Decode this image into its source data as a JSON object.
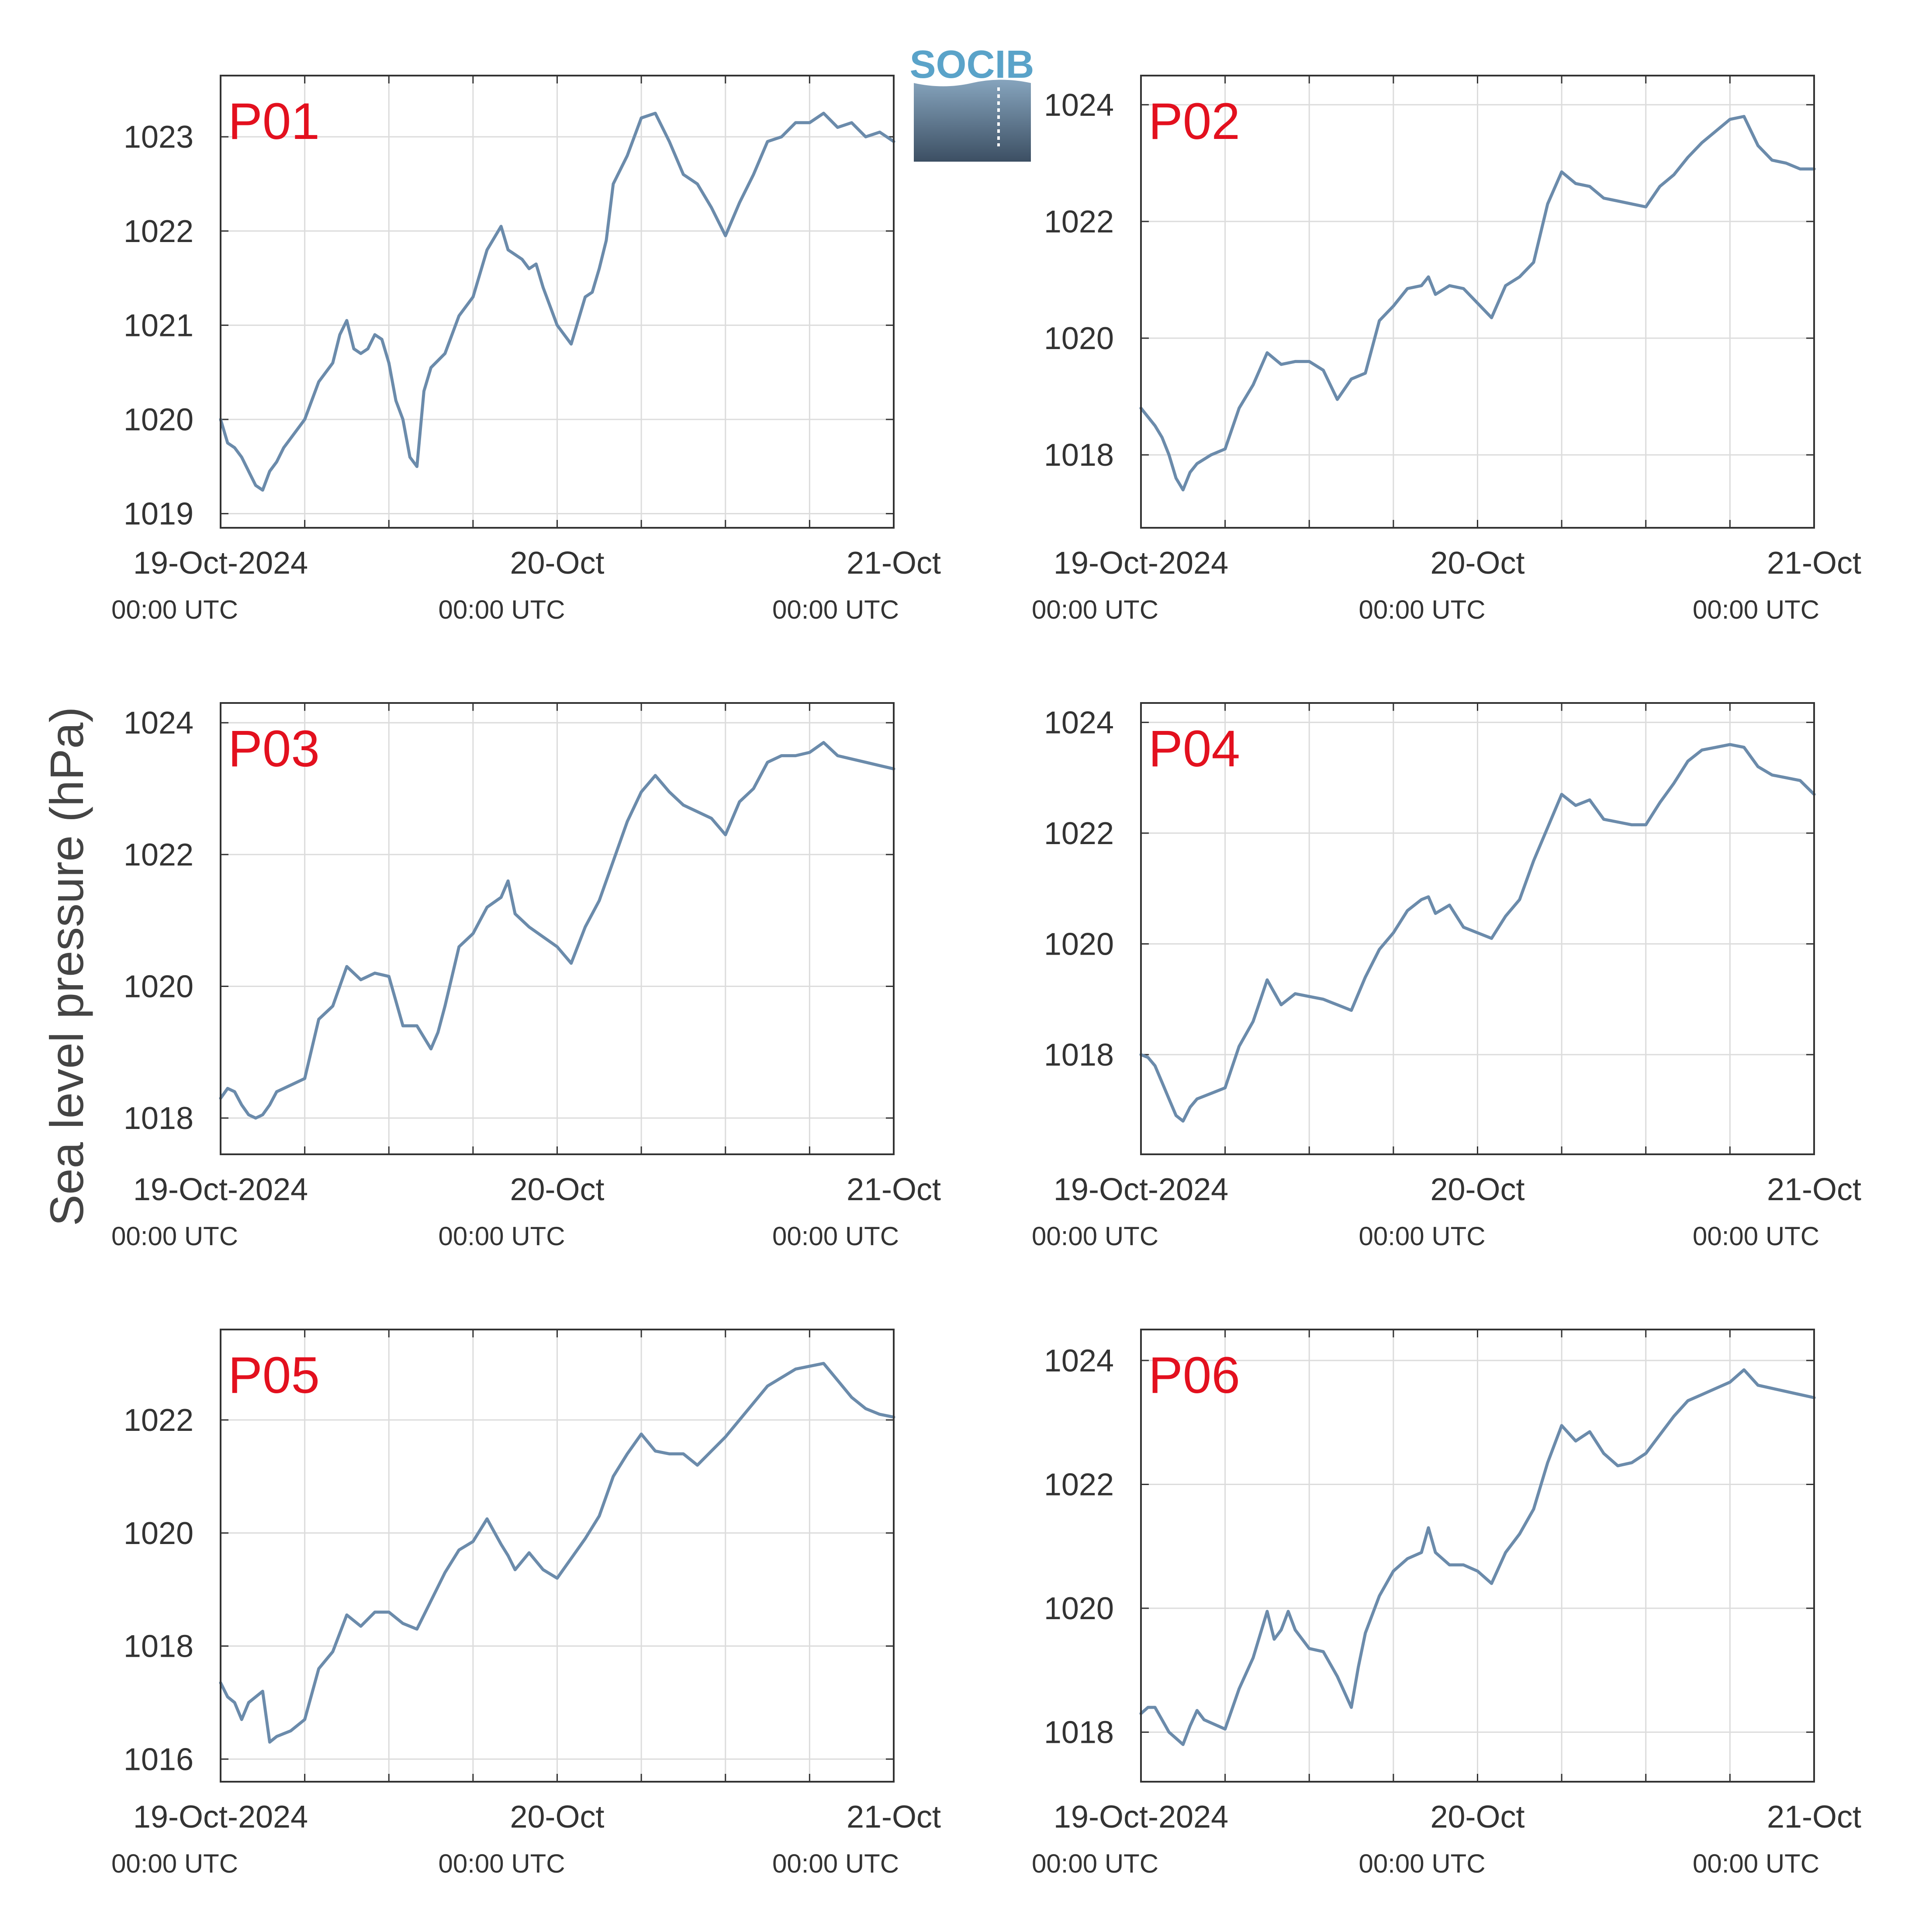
{
  "figure": {
    "ylabel": "Sea level pressure (hPa)",
    "logo": {
      "text": "SOCIB"
    },
    "colors": {
      "line": "#6b8bab",
      "label": "#e3101e",
      "grid": "#dcdcdc",
      "axis": "#333333",
      "logo_text": "#5aa3c9",
      "logo_top": "#86a4bd",
      "logo_bottom": "#3c4f63"
    },
    "x_ticks": [
      {
        "date": "19-Oct-2024",
        "time": "00:00 UTC",
        "x": 0
      },
      {
        "date": "20-Oct",
        "time": "00:00 UTC",
        "x": 24
      },
      {
        "date": "21-Oct",
        "time": "00:00 UTC",
        "x": 48
      }
    ]
  },
  "chart_data": [
    {
      "type": "line",
      "label": "P01",
      "xlim": [
        0,
        48
      ],
      "ylim": [
        1018.85,
        1023.65
      ],
      "yticks": [
        1019,
        1020,
        1021,
        1022,
        1023
      ],
      "ylabel": "Sea level pressure (hPa)",
      "grid": true,
      "x": [
        0,
        0.5,
        1,
        1.5,
        2,
        2.5,
        3,
        3.5,
        4,
        4.5,
        5,
        6,
        7,
        8,
        8.5,
        9,
        9.5,
        10,
        10.5,
        11,
        11.5,
        12,
        12.5,
        13,
        13.5,
        14,
        14.5,
        15,
        16,
        17,
        18,
        19,
        20,
        20.5,
        21,
        21.5,
        22,
        22.5,
        23,
        24,
        25,
        26,
        26.5,
        27,
        27.5,
        28,
        29,
        30,
        31,
        32,
        33,
        33.5,
        34,
        35,
        36,
        37,
        38,
        39,
        40,
        41,
        42,
        43,
        44,
        45,
        46,
        47,
        48
      ],
      "values": [
        1020.0,
        1019.75,
        1019.7,
        1019.6,
        1019.45,
        1019.3,
        1019.25,
        1019.45,
        1019.55,
        1019.7,
        1019.8,
        1020.0,
        1020.4,
        1020.6,
        1020.9,
        1021.05,
        1020.75,
        1020.7,
        1020.75,
        1020.9,
        1020.85,
        1020.6,
        1020.2,
        1020.0,
        1019.6,
        1019.5,
        1020.3,
        1020.55,
        1020.7,
        1021.1,
        1021.3,
        1021.8,
        1022.05,
        1021.8,
        1021.75,
        1021.7,
        1021.6,
        1021.65,
        1021.4,
        1021.0,
        1020.8,
        1021.3,
        1021.35,
        1021.6,
        1021.9,
        1022.5,
        1022.8,
        1023.2,
        1023.25,
        1022.95,
        1022.6,
        1022.55,
        1022.5,
        1022.25,
        1021.95,
        1022.3,
        1022.6,
        1022.95,
        1023.0,
        1023.15,
        1023.15,
        1023.25,
        1023.1,
        1023.15,
        1023.0,
        1023.05,
        1022.95
      ]
    },
    {
      "type": "line",
      "label": "P02",
      "xlim": [
        0,
        48
      ],
      "ylim": [
        1016.75,
        1024.5
      ],
      "yticks": [
        1018,
        1020,
        1022,
        1024
      ],
      "ylabel": "Sea level pressure (hPa)",
      "grid": true,
      "x": [
        0,
        0.5,
        1,
        1.5,
        2,
        2.5,
        3,
        3.5,
        4,
        5,
        6,
        7,
        8,
        9,
        10,
        11,
        12,
        13,
        14,
        15,
        16,
        17,
        18,
        19,
        20,
        20.5,
        21,
        22,
        23,
        24,
        25,
        26,
        27,
        28,
        29,
        30,
        31,
        32,
        33,
        34,
        35,
        36,
        37,
        38,
        39,
        40,
        41,
        42,
        43,
        44,
        45,
        46,
        47,
        48
      ],
      "values": [
        1018.8,
        1018.65,
        1018.5,
        1018.3,
        1018.0,
        1017.6,
        1017.4,
        1017.7,
        1017.85,
        1018.0,
        1018.1,
        1018.8,
        1019.2,
        1019.75,
        1019.55,
        1019.6,
        1019.6,
        1019.45,
        1018.95,
        1019.3,
        1019.4,
        1020.3,
        1020.55,
        1020.85,
        1020.9,
        1021.05,
        1020.75,
        1020.9,
        1020.85,
        1020.6,
        1020.35,
        1020.9,
        1021.05,
        1021.3,
        1022.3,
        1022.85,
        1022.65,
        1022.6,
        1022.4,
        1022.35,
        1022.3,
        1022.25,
        1022.6,
        1022.8,
        1023.1,
        1023.35,
        1023.55,
        1023.75,
        1023.8,
        1023.3,
        1023.05,
        1023.0,
        1022.9,
        1022.9
      ]
    },
    {
      "type": "line",
      "label": "P03",
      "xlim": [
        0,
        48
      ],
      "ylim": [
        1017.45,
        1024.3
      ],
      "yticks": [
        1018,
        1020,
        1022,
        1024
      ],
      "ylabel": "Sea level pressure (hPa)",
      "grid": true,
      "x": [
        0,
        0.5,
        1,
        1.5,
        2,
        2.5,
        3,
        3.5,
        4,
        5,
        6,
        7,
        8,
        9,
        10,
        11,
        12,
        13,
        14,
        15,
        15.5,
        16,
        17,
        18,
        19,
        20,
        20.5,
        21,
        22,
        23,
        24,
        25,
        26,
        27,
        28,
        29,
        30,
        31,
        32,
        33,
        34,
        35,
        36,
        37,
        38,
        39,
        40,
        41,
        42,
        43,
        44,
        45,
        46,
        47,
        48
      ],
      "values": [
        1018.3,
        1018.45,
        1018.4,
        1018.2,
        1018.05,
        1018.0,
        1018.05,
        1018.2,
        1018.4,
        1018.5,
        1018.6,
        1019.5,
        1019.7,
        1020.3,
        1020.1,
        1020.2,
        1020.15,
        1019.4,
        1019.4,
        1019.05,
        1019.3,
        1019.7,
        1020.6,
        1020.8,
        1021.2,
        1021.35,
        1021.6,
        1021.1,
        1020.9,
        1020.75,
        1020.6,
        1020.35,
        1020.9,
        1021.3,
        1021.9,
        1022.5,
        1022.95,
        1023.2,
        1022.95,
        1022.75,
        1022.65,
        1022.55,
        1022.3,
        1022.8,
        1023.0,
        1023.4,
        1023.5,
        1023.5,
        1023.55,
        1023.7,
        1023.5,
        1023.45,
        1023.4,
        1023.35,
        1023.3
      ]
    },
    {
      "type": "line",
      "label": "P04",
      "xlim": [
        0,
        48
      ],
      "ylim": [
        1016.2,
        1024.35
      ],
      "yticks": [
        1018,
        1020,
        1022,
        1024
      ],
      "ylabel": "Sea level pressure (hPa)",
      "grid": true,
      "x": [
        0,
        0.5,
        1,
        1.5,
        2,
        2.5,
        3,
        3.5,
        4,
        5,
        6,
        7,
        8,
        9,
        10,
        11,
        12,
        13,
        14,
        15,
        16,
        17,
        18,
        19,
        20,
        20.5,
        21,
        22,
        23,
        24,
        25,
        26,
        27,
        28,
        29,
        30,
        31,
        32,
        33,
        34,
        35,
        36,
        37,
        38,
        39,
        40,
        41,
        42,
        43,
        44,
        45,
        46,
        47,
        48
      ],
      "values": [
        1018.0,
        1017.95,
        1017.8,
        1017.5,
        1017.2,
        1016.9,
        1016.8,
        1017.05,
        1017.2,
        1017.3,
        1017.4,
        1018.15,
        1018.6,
        1019.35,
        1018.9,
        1019.1,
        1019.05,
        1019.0,
        1018.9,
        1018.8,
        1019.4,
        1019.9,
        1020.2,
        1020.6,
        1020.8,
        1020.85,
        1020.55,
        1020.7,
        1020.3,
        1020.2,
        1020.1,
        1020.5,
        1020.8,
        1021.5,
        1022.1,
        1022.7,
        1022.5,
        1022.6,
        1022.25,
        1022.2,
        1022.15,
        1022.15,
        1022.55,
        1022.9,
        1023.3,
        1023.5,
        1023.55,
        1023.6,
        1023.55,
        1023.2,
        1023.05,
        1023.0,
        1022.95,
        1022.7
      ]
    },
    {
      "type": "line",
      "label": "P05",
      "xlim": [
        0,
        48
      ],
      "ylim": [
        1015.6,
        1023.6
      ],
      "yticks": [
        1016,
        1018,
        1020,
        1022
      ],
      "ylabel": "Sea level pressure (hPa)",
      "grid": true,
      "x": [
        0,
        0.5,
        1,
        1.5,
        2,
        2.5,
        3,
        3.5,
        4,
        4.5,
        5,
        6,
        7,
        8,
        9,
        10,
        11,
        12,
        13,
        14,
        15,
        16,
        17,
        18,
        19,
        20,
        20.5,
        21,
        22,
        23,
        24,
        25,
        26,
        27,
        28,
        29,
        30,
        31,
        32,
        33,
        34,
        35,
        36,
        37,
        38,
        39,
        40,
        41,
        42,
        43,
        44,
        45,
        46,
        47,
        48
      ],
      "values": [
        1017.35,
        1017.1,
        1017.0,
        1016.7,
        1017.0,
        1017.1,
        1017.2,
        1016.3,
        1016.4,
        1016.45,
        1016.5,
        1016.7,
        1017.6,
        1017.9,
        1018.55,
        1018.35,
        1018.6,
        1018.6,
        1018.4,
        1018.3,
        1018.8,
        1019.3,
        1019.7,
        1019.85,
        1020.25,
        1019.8,
        1019.6,
        1019.35,
        1019.65,
        1019.35,
        1019.2,
        1019.55,
        1019.9,
        1020.3,
        1021.0,
        1021.4,
        1021.75,
        1021.45,
        1021.4,
        1021.4,
        1021.2,
        1021.45,
        1021.7,
        1022.0,
        1022.3,
        1022.6,
        1022.75,
        1022.9,
        1022.95,
        1023.0,
        1022.7,
        1022.4,
        1022.2,
        1022.1,
        1022.05
      ]
    },
    {
      "type": "line",
      "label": "P06",
      "xlim": [
        0,
        48
      ],
      "ylim": [
        1017.2,
        1024.5
      ],
      "yticks": [
        1018,
        1020,
        1022,
        1024
      ],
      "ylabel": "Sea level pressure (hPa)",
      "grid": true,
      "x": [
        0,
        0.5,
        1,
        1.5,
        2,
        2.5,
        3,
        3.5,
        4,
        4.5,
        5,
        6,
        7,
        8,
        9,
        9.5,
        10,
        10.5,
        11,
        12,
        13,
        14,
        15,
        15.5,
        16,
        17,
        18,
        19,
        20,
        20.5,
        21,
        22,
        23,
        24,
        25,
        26,
        27,
        28,
        29,
        30,
        31,
        32,
        33,
        34,
        35,
        36,
        37,
        38,
        39,
        40,
        41,
        42,
        43,
        44,
        45,
        46,
        47,
        48
      ],
      "values": [
        1018.3,
        1018.4,
        1018.4,
        1018.2,
        1018.0,
        1017.9,
        1017.8,
        1018.1,
        1018.35,
        1018.2,
        1018.15,
        1018.05,
        1018.7,
        1019.2,
        1019.95,
        1019.5,
        1019.65,
        1019.95,
        1019.65,
        1019.35,
        1019.3,
        1018.9,
        1018.4,
        1019.05,
        1019.6,
        1020.2,
        1020.6,
        1020.8,
        1020.9,
        1021.3,
        1020.9,
        1020.7,
        1020.7,
        1020.6,
        1020.4,
        1020.9,
        1021.2,
        1021.6,
        1022.35,
        1022.95,
        1022.7,
        1022.85,
        1022.5,
        1022.3,
        1022.35,
        1022.5,
        1022.8,
        1023.1,
        1023.35,
        1023.45,
        1023.55,
        1023.65,
        1023.85,
        1023.6,
        1023.55,
        1023.5,
        1023.45,
        1023.4
      ]
    }
  ]
}
